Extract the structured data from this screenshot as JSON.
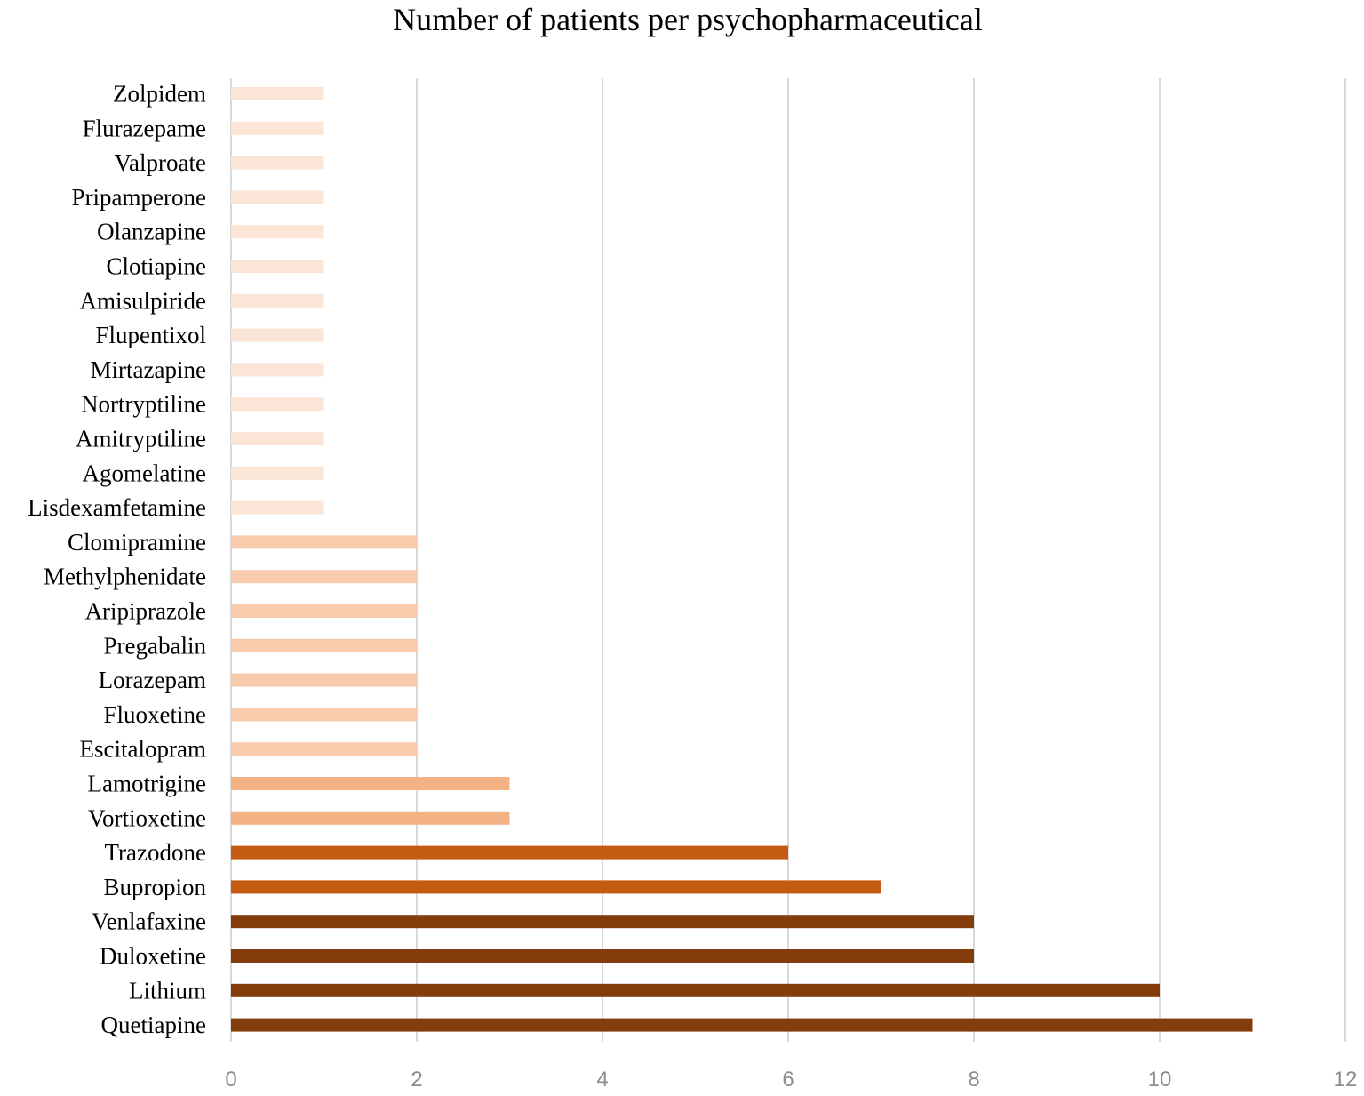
{
  "chart_data": {
    "type": "bar",
    "orientation": "horizontal",
    "title": "Number of patients per psychopharmaceutical",
    "xlabel": "",
    "ylabel": "",
    "xlim": [
      0,
      12
    ],
    "x_ticks": [
      0,
      2,
      4,
      6,
      8,
      10,
      12
    ],
    "grid": "vertical",
    "legend": "none",
    "categories": [
      "Zolpidem",
      "Flurazepame",
      "Valproate",
      "Pripamperone",
      "Olanzapine",
      "Clotiapine",
      "Amisulpiride",
      "Flupentixol",
      "Mirtazapine",
      "Nortryptiline",
      "Amitryptiline",
      "Agomelatine",
      "Lisdexamfetamine",
      "Clomipramine",
      "Methylphenidate",
      "Aripiprazole",
      "Pregabalin",
      "Lorazepam",
      "Fluoxetine",
      "Escitalopram",
      "Lamotrigine",
      "Vortioxetine",
      "Trazodone",
      "Bupropion",
      "Venlafaxine",
      "Duloxetine",
      "Lithium",
      "Quetiapine"
    ],
    "values": [
      1,
      1,
      1,
      1,
      1,
      1,
      1,
      1,
      1,
      1,
      1,
      1,
      1,
      2,
      2,
      2,
      2,
      2,
      2,
      2,
      3,
      3,
      6,
      7,
      8,
      8,
      10,
      11
    ],
    "value_colors": {
      "1": "#fbe5d6",
      "2": "#f8cbad",
      "3": "#f4b183",
      "6": "#c55a11",
      "7": "#c55a11",
      "8": "#843c0c",
      "10": "#843c0c",
      "11": "#843c0c"
    }
  }
}
